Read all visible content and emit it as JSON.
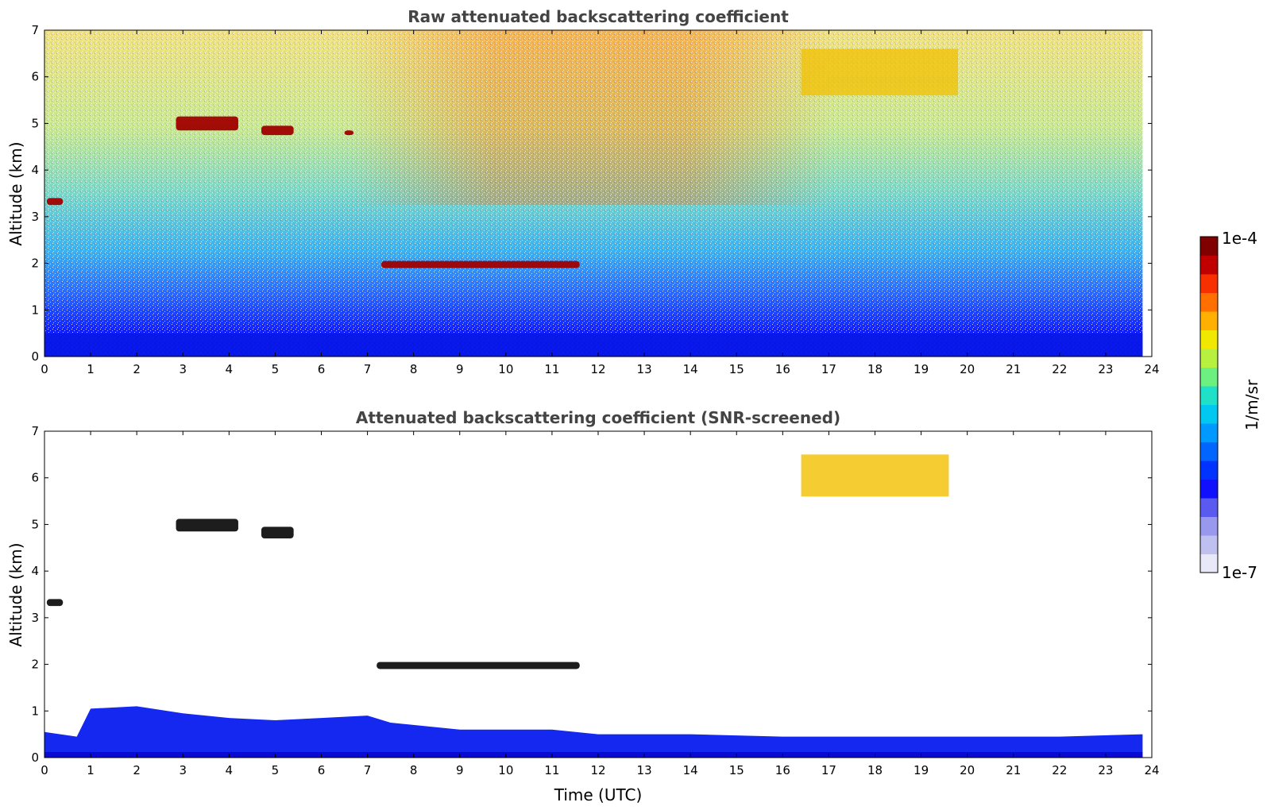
{
  "chart_data": [
    {
      "type": "heatmap",
      "title": "Raw attenuated backscattering coefficient",
      "xlabel": "",
      "ylabel": "Altitude (km)",
      "xlim": [
        0,
        24
      ],
      "ylim": [
        0,
        7
      ],
      "x_ticks": [
        "0",
        "1",
        "2",
        "3",
        "4",
        "5",
        "6",
        "7",
        "8",
        "9",
        "10",
        "11",
        "12",
        "13",
        "14",
        "15",
        "16",
        "17",
        "18",
        "19",
        "20",
        "21",
        "22",
        "23",
        "24"
      ],
      "y_ticks": [
        "0",
        "1",
        "2",
        "3",
        "4",
        "5",
        "6",
        "7"
      ],
      "data_extent_x": [
        0,
        23.8
      ],
      "features": [
        {
          "name": "boundary-layer",
          "x": [
            0,
            23.8
          ],
          "y": [
            0,
            0.5
          ],
          "level": "low-blue"
        },
        {
          "name": "cloud",
          "x": [
            2.85,
            4.2
          ],
          "y": [
            4.85,
            5.15
          ],
          "level": "high-red"
        },
        {
          "name": "cloud",
          "x": [
            4.7,
            5.4
          ],
          "y": [
            4.75,
            4.95
          ],
          "level": "high-red"
        },
        {
          "name": "cloud",
          "x": [
            6.5,
            6.7
          ],
          "y": [
            4.75,
            4.85
          ],
          "level": "high-red"
        },
        {
          "name": "cloud",
          "x": [
            0.05,
            0.4
          ],
          "y": [
            3.25,
            3.4
          ],
          "level": "high-red"
        },
        {
          "name": "cloud",
          "x": [
            7.3,
            11.6
          ],
          "y": [
            1.9,
            2.05
          ],
          "level": "high-red"
        },
        {
          "name": "aerosol-layer",
          "x": [
            16.4,
            19.8
          ],
          "y": [
            5.6,
            6.6
          ],
          "level": "mid-yellow"
        }
      ]
    },
    {
      "type": "heatmap",
      "title": "Attenuated backscattering coefficient (SNR-screened)",
      "xlabel": "Time (UTC)",
      "ylabel": "Altitude (km)",
      "xlim": [
        0,
        24
      ],
      "ylim": [
        0,
        7
      ],
      "x_ticks": [
        "0",
        "1",
        "2",
        "3",
        "4",
        "5",
        "6",
        "7",
        "8",
        "9",
        "10",
        "11",
        "12",
        "13",
        "14",
        "15",
        "16",
        "17",
        "18",
        "19",
        "20",
        "21",
        "22",
        "23",
        "24"
      ],
      "y_ticks": [
        "0",
        "1",
        "2",
        "3",
        "4",
        "5",
        "6",
        "7"
      ],
      "data_extent_x": [
        0,
        23.8
      ],
      "boundary_layer_top": [
        [
          0,
          0.55
        ],
        [
          0.7,
          0.45
        ],
        [
          1,
          1.05
        ],
        [
          2,
          1.1
        ],
        [
          3,
          0.95
        ],
        [
          4,
          0.85
        ],
        [
          5,
          0.8
        ],
        [
          6,
          0.85
        ],
        [
          7,
          0.9
        ],
        [
          7.5,
          0.75
        ],
        [
          9,
          0.6
        ],
        [
          11,
          0.6
        ],
        [
          12,
          0.5
        ],
        [
          14,
          0.5
        ],
        [
          16,
          0.45
        ],
        [
          18,
          0.45
        ],
        [
          20,
          0.45
        ],
        [
          22,
          0.45
        ],
        [
          23.8,
          0.5
        ]
      ],
      "features": [
        {
          "name": "cloud",
          "x": [
            2.85,
            4.2
          ],
          "y": [
            4.85,
            5.12
          ],
          "level": "saturated"
        },
        {
          "name": "cloud",
          "x": [
            4.7,
            5.4
          ],
          "y": [
            4.7,
            4.95
          ],
          "level": "saturated"
        },
        {
          "name": "cloud",
          "x": [
            0.05,
            0.4
          ],
          "y": [
            3.25,
            3.4
          ],
          "level": "saturated"
        },
        {
          "name": "cloud",
          "x": [
            7.2,
            11.6
          ],
          "y": [
            1.9,
            2.05
          ],
          "level": "saturated"
        },
        {
          "name": "aerosol-layer",
          "x": [
            16.4,
            19.6
          ],
          "y": [
            5.6,
            6.5
          ],
          "level": "mid-yellow"
        }
      ]
    }
  ],
  "colorbar": {
    "label": "1/m/sr",
    "max_label": "1e-4",
    "min_label": "1e-7",
    "scale": "log",
    "range": [
      1e-07,
      0.0001
    ],
    "colors": [
      "#e8e8f8",
      "#c0c0f0",
      "#9898ee",
      "#5a5af0",
      "#1010ff",
      "#0033ff",
      "#0066ff",
      "#0099ff",
      "#00c8f0",
      "#20e0c8",
      "#6cf080",
      "#b8f040",
      "#f0e800",
      "#ffb000",
      "#ff7000",
      "#f83000",
      "#c00000",
      "#800000"
    ]
  }
}
